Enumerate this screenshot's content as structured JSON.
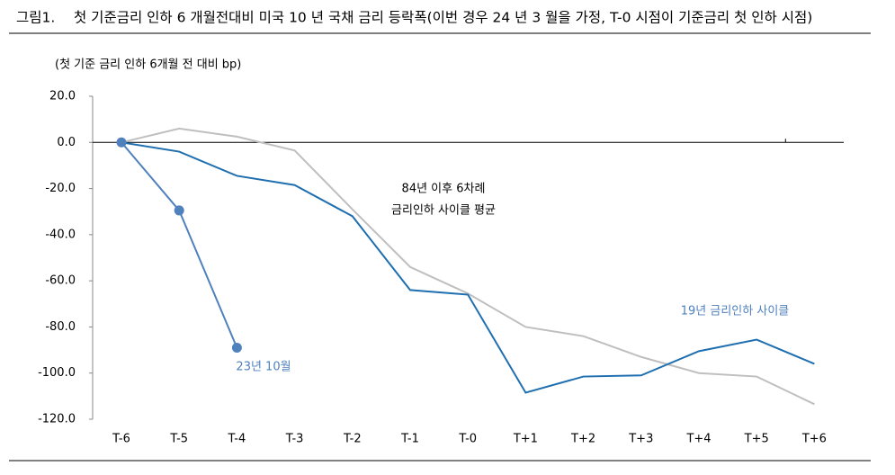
{
  "chart_data": {
    "type": "line",
    "figure_label": "그림1.",
    "title": "첫 기준금리 인하 6 개월전대비 미국 10 년 국채 금리 등락폭(이번 경우 24 년 3 월을 가정, T-0 시점이 기준금리 첫 인하 시점)",
    "y_label": "(첫 기준 금리 인하 6개월 전 대비 bp)",
    "categories": [
      "T-6",
      "T-5",
      "T-4",
      "T-3",
      "T-2",
      "T-1",
      "T-0",
      "T+1",
      "T+2",
      "T+3",
      "T+4",
      "T+5",
      "T+6"
    ],
    "series": [
      {
        "color": "#bfbfbf",
        "markers": false,
        "values": [
          0,
          6,
          2.5,
          -3.5,
          -29,
          -54,
          -65.5,
          -80,
          -84,
          -93,
          -100,
          -101.5,
          -113.5
        ]
      },
      {
        "color": "#1f6fb0",
        "markers": false,
        "values": [
          0,
          -4,
          -14.5,
          -18.5,
          -32,
          -64,
          -66,
          -108.5,
          -101.5,
          -101,
          -90.5,
          -85.5,
          -96
        ]
      },
      {
        "color": "#4f81bd",
        "markers": true,
        "values": [
          0,
          -29.5,
          -89,
          null,
          null,
          null,
          null,
          null,
          null,
          null,
          null,
          null,
          null
        ]
      }
    ],
    "annotations": [
      "84년 이후 6차례",
      "금리인하 사이클 평균",
      "19년 금리인하 사이클",
      "23년 10월"
    ],
    "annotation_colors": [
      "#000000",
      "#000000",
      "#4f81bd",
      "#4f81bd"
    ],
    "ylim": [
      -120,
      20
    ],
    "yticks": [
      {
        "value": 20,
        "label": "20.0"
      },
      {
        "value": 0,
        "label": "0.0"
      },
      {
        "value": -20,
        "label": "-20.0"
      },
      {
        "value": -40,
        "label": "-40.0"
      },
      {
        "value": -60,
        "label": "-60.0"
      },
      {
        "value": -80,
        "label": "-80.0"
      },
      {
        "value": -100,
        "label": "-100.0"
      },
      {
        "value": -120,
        "label": "-120.0"
      }
    ]
  }
}
